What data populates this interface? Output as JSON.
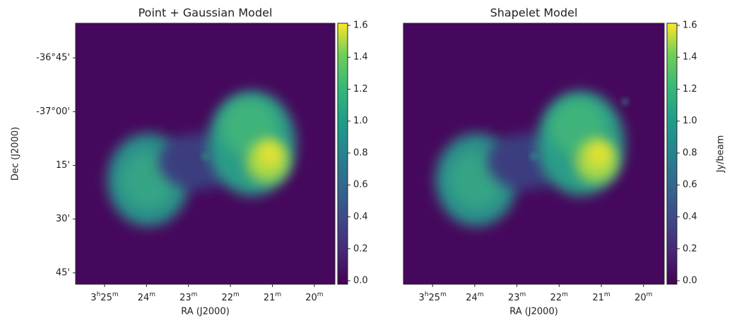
{
  "chart_data": [
    {
      "type": "image",
      "title": "Point + Gaussian Model",
      "xlabel": "RA (J2000)",
      "ylabel": "Dec (J2000)",
      "colormap": "viridis",
      "xlim": [
        205.69,
        199.51
      ],
      "xticks": [
        {
          "value": 205,
          "label": "3h25m"
        },
        {
          "value": 204,
          "label": "24m"
        },
        {
          "value": 203,
          "label": "23m"
        },
        {
          "value": 202,
          "label": "22m"
        },
        {
          "value": 201,
          "label": "21m"
        },
        {
          "value": 200,
          "label": "20m"
        }
      ],
      "ylim": [
        -37.803,
        -36.589
      ],
      "yticks": [
        {
          "value": -36.75,
          "label": "-36°45'"
        },
        {
          "value": -37,
          "label": "-37°00'"
        },
        {
          "value": -37.25,
          "label": "15'"
        },
        {
          "value": -37.5,
          "label": "30'"
        },
        {
          "value": -37.75,
          "label": "45'"
        }
      ],
      "clim": [
        -0.022,
        1.613
      ],
      "cticks": [
        {
          "value": 0,
          "label": "0.0"
        },
        0.2,
        0.4,
        0.6,
        0.8,
        {
          "value": 1,
          "label": "1.0"
        },
        1.2,
        1.4,
        1.6
      ]
    },
    {
      "type": "image",
      "title": "Shapelet Model",
      "xlabel": "RA (J2000)",
      "colorbar_label": "Jy/beam",
      "colormap": "viridis",
      "xlim": [
        205.69,
        199.51
      ],
      "xticks": [
        {
          "value": 205,
          "label": "3h25m"
        },
        {
          "value": 204,
          "label": "24m"
        },
        {
          "value": 203,
          "label": "23m"
        },
        {
          "value": 202,
          "label": "22m"
        },
        {
          "value": 201,
          "label": "21m"
        },
        {
          "value": 200,
          "label": "20m"
        }
      ],
      "ylim": [
        -37.803,
        -36.589
      ],
      "clim": [
        -0.022,
        1.613
      ],
      "cticks": [
        {
          "value": 0,
          "label": "0.0"
        },
        0.2,
        0.4,
        0.6,
        0.8,
        {
          "value": 1,
          "label": "1.0"
        },
        1.2,
        1.4,
        1.6
      ]
    }
  ]
}
